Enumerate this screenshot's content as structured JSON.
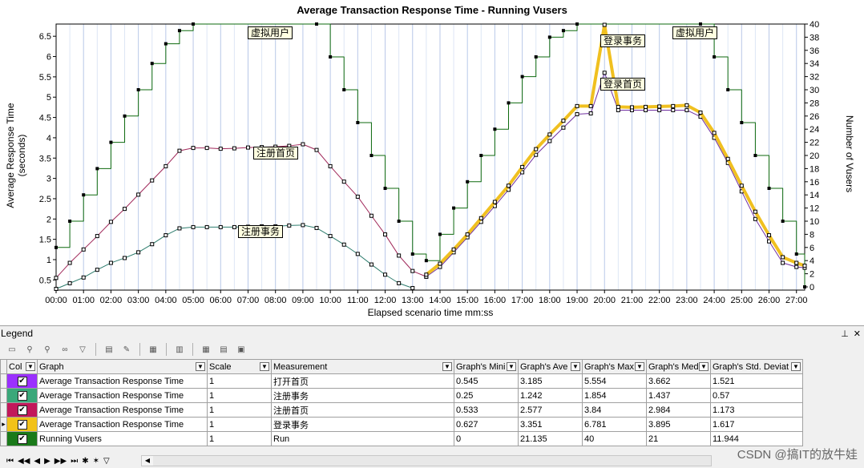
{
  "chart": {
    "title": "Average Transaction Response Time - Running Vusers",
    "ylabel_left": "Average Response Time (seconds)",
    "ylabel_right": "Number of Vusers",
    "xlabel": "Elapsed scenario time mm:ss",
    "callouts": [
      {
        "text": "虚拟用户"
      },
      {
        "text": "注册首页"
      },
      {
        "text": "注册事务"
      },
      {
        "text": "登录事务"
      },
      {
        "text": "登录首页"
      },
      {
        "text": "虚拟用户"
      }
    ]
  },
  "chart_data": {
    "type": "line",
    "x_ticks": [
      "00:00",
      "01:00",
      "02:00",
      "03:00",
      "04:00",
      "05:00",
      "06:00",
      "07:00",
      "08:00",
      "09:00",
      "10:00",
      "11:00",
      "12:00",
      "13:00",
      "14:00",
      "15:00",
      "16:00",
      "17:00",
      "18:00",
      "19:00",
      "20:00",
      "21:00",
      "22:00",
      "23:00",
      "24:00",
      "25:00",
      "26:00",
      "27:00"
    ],
    "y_left_ticks": [
      "0.5",
      "1",
      "1.5",
      "2",
      "2.5",
      "3",
      "3.5",
      "4",
      "4.5",
      "5",
      "5.5",
      "6",
      "6.5"
    ],
    "y_right_ticks": [
      "0",
      "2",
      "4",
      "6",
      "8",
      "10",
      "12",
      "14",
      "16",
      "18",
      "20",
      "22",
      "24",
      "26",
      "28",
      "30",
      "32",
      "34",
      "36",
      "38",
      "40"
    ],
    "xlim_minutes": [
      0,
      27.3
    ],
    "ylim_left": [
      0.25,
      6.8
    ],
    "ylim_right": [
      0,
      40
    ],
    "grid": "vertical",
    "series": [
      {
        "name": "Running Vusers",
        "axis": "right",
        "style": "step",
        "color": "#0e6a0e",
        "points": [
          [
            0,
            6
          ],
          [
            0.5,
            10
          ],
          [
            1,
            14
          ],
          [
            1.5,
            18
          ],
          [
            2,
            22
          ],
          [
            2.5,
            26
          ],
          [
            3,
            30
          ],
          [
            3.5,
            34
          ],
          [
            4,
            37
          ],
          [
            4.5,
            39
          ],
          [
            5,
            40
          ],
          [
            9.5,
            40
          ],
          [
            10,
            35
          ],
          [
            10.5,
            30
          ],
          [
            11,
            25
          ],
          [
            11.5,
            20
          ],
          [
            12,
            15
          ],
          [
            12.5,
            10
          ],
          [
            13,
            5
          ],
          [
            13.5,
            4
          ],
          [
            14,
            8
          ],
          [
            14.5,
            12
          ],
          [
            15,
            16
          ],
          [
            15.5,
            20
          ],
          [
            16,
            24
          ],
          [
            16.5,
            28
          ],
          [
            17,
            32
          ],
          [
            17.5,
            35
          ],
          [
            18,
            38
          ],
          [
            18.5,
            39
          ],
          [
            19,
            40
          ],
          [
            23.5,
            40
          ],
          [
            24,
            35
          ],
          [
            24.5,
            30
          ],
          [
            25,
            25
          ],
          [
            25.5,
            20
          ],
          [
            26,
            15
          ],
          [
            26.5,
            10
          ],
          [
            27,
            5
          ],
          [
            27.3,
            0
          ]
        ]
      },
      {
        "name": "注册首页",
        "axis": "left",
        "style": "line",
        "color": "#a0285a",
        "points": [
          [
            0,
            0.55
          ],
          [
            0.5,
            0.92
          ],
          [
            1,
            1.25
          ],
          [
            1.5,
            1.58
          ],
          [
            2,
            1.93
          ],
          [
            2.5,
            2.25
          ],
          [
            3,
            2.6
          ],
          [
            3.5,
            2.95
          ],
          [
            4,
            3.3
          ],
          [
            4.5,
            3.68
          ],
          [
            5,
            3.75
          ],
          [
            5.5,
            3.75
          ],
          [
            6,
            3.73
          ],
          [
            6.5,
            3.74
          ],
          [
            7,
            3.76
          ],
          [
            7.5,
            3.77
          ],
          [
            8,
            3.78
          ],
          [
            8.5,
            3.8
          ],
          [
            9,
            3.84
          ],
          [
            9.5,
            3.7
          ],
          [
            10,
            3.3
          ],
          [
            10.5,
            2.92
          ],
          [
            11,
            2.55
          ],
          [
            11.5,
            2.08
          ],
          [
            12,
            1.62
          ],
          [
            12.5,
            1.1
          ],
          [
            13,
            0.72
          ],
          [
            13.5,
            0.58
          ]
        ]
      },
      {
        "name": "注册事务",
        "axis": "left",
        "style": "line",
        "color": "#2e7d6e",
        "points": [
          [
            0,
            0.28
          ],
          [
            0.5,
            0.42
          ],
          [
            1,
            0.56
          ],
          [
            1.5,
            0.75
          ],
          [
            2,
            0.92
          ],
          [
            2.5,
            1.04
          ],
          [
            3,
            1.18
          ],
          [
            3.5,
            1.38
          ],
          [
            4,
            1.6
          ],
          [
            4.5,
            1.77
          ],
          [
            5,
            1.8
          ],
          [
            5.5,
            1.8
          ],
          [
            6,
            1.8
          ],
          [
            6.5,
            1.8
          ],
          [
            7,
            1.81
          ],
          [
            7.5,
            1.82
          ],
          [
            8,
            1.82
          ],
          [
            8.5,
            1.84
          ],
          [
            9,
            1.85
          ],
          [
            9.5,
            1.78
          ],
          [
            10,
            1.58
          ],
          [
            10.5,
            1.37
          ],
          [
            11,
            1.14
          ],
          [
            11.5,
            0.88
          ],
          [
            12,
            0.63
          ],
          [
            12.5,
            0.42
          ],
          [
            13,
            0.3
          ]
        ]
      },
      {
        "name": "打开首页",
        "axis": "left",
        "style": "line",
        "color": "#7030a0",
        "points": [
          [
            13.5,
            0.58
          ],
          [
            14,
            0.82
          ],
          [
            14.5,
            1.18
          ],
          [
            15,
            1.55
          ],
          [
            15.5,
            1.93
          ],
          [
            16,
            2.32
          ],
          [
            16.5,
            2.72
          ],
          [
            17,
            3.15
          ],
          [
            17.5,
            3.58
          ],
          [
            18,
            3.92
          ],
          [
            18.5,
            4.25
          ],
          [
            19,
            4.58
          ],
          [
            19.5,
            4.6
          ],
          [
            20,
            5.6
          ],
          [
            20.5,
            4.68
          ],
          [
            21,
            4.68
          ],
          [
            21.5,
            4.68
          ],
          [
            22,
            4.68
          ],
          [
            22.5,
            4.68
          ],
          [
            23,
            4.68
          ],
          [
            23.5,
            4.52
          ],
          [
            24,
            4
          ],
          [
            24.5,
            3.38
          ],
          [
            25,
            2.68
          ],
          [
            25.5,
            2
          ],
          [
            26,
            1.45
          ],
          [
            26.5,
            0.92
          ],
          [
            27,
            0.82
          ],
          [
            27.3,
            0.8
          ]
        ]
      },
      {
        "name": "登录事务",
        "axis": "left",
        "style": "thick",
        "color": "#f0c020",
        "points": [
          [
            13.5,
            0.63
          ],
          [
            14,
            0.9
          ],
          [
            14.5,
            1.25
          ],
          [
            15,
            1.62
          ],
          [
            15.5,
            2.02
          ],
          [
            16,
            2.42
          ],
          [
            16.5,
            2.82
          ],
          [
            17,
            3.28
          ],
          [
            17.5,
            3.72
          ],
          [
            18,
            4.08
          ],
          [
            18.5,
            4.42
          ],
          [
            19,
            4.78
          ],
          [
            19.5,
            4.78
          ],
          [
            20,
            6.78
          ],
          [
            20.5,
            4.76
          ],
          [
            21,
            4.75
          ],
          [
            21.5,
            4.76
          ],
          [
            22,
            4.77
          ],
          [
            22.5,
            4.78
          ],
          [
            23,
            4.8
          ],
          [
            23.5,
            4.62
          ],
          [
            24,
            4.12
          ],
          [
            24.5,
            3.48
          ],
          [
            25,
            2.82
          ],
          [
            25.5,
            2.18
          ],
          [
            26,
            1.6
          ],
          [
            26.5,
            1.06
          ],
          [
            27,
            0.92
          ],
          [
            27.3,
            0.85
          ]
        ]
      }
    ]
  },
  "legend": {
    "title": "Legend",
    "headers": [
      "Col",
      "Graph",
      "Scale",
      "Measurement",
      "Graph's Mini",
      "Graph's Ave",
      "Graph's Max",
      "Graph's Med",
      "Graph's Std. Deviat"
    ],
    "rows": [
      {
        "color": "#9b30ff",
        "graph": "Average Transaction Response Time",
        "scale": "1",
        "measurement": "打开首页",
        "min": "0.545",
        "avg": "3.185",
        "max": "5.554",
        "med": "3.662",
        "std": "1.521"
      },
      {
        "color": "#3aa87a",
        "graph": "Average Transaction Response Time",
        "scale": "1",
        "measurement": "注册事务",
        "min": "0.25",
        "avg": "1.242",
        "max": "1.854",
        "med": "1.437",
        "std": "0.57"
      },
      {
        "color": "#c2185b",
        "graph": "Average Transaction Response Time",
        "scale": "1",
        "measurement": "注册首页",
        "min": "0.533",
        "avg": "2.577",
        "max": "3.84",
        "med": "2.984",
        "std": "1.173"
      },
      {
        "color": "#f2c21a",
        "graph": "Average Transaction Response Time",
        "scale": "1",
        "measurement": "登录事务",
        "min": "0.627",
        "avg": "3.351",
        "max": "6.781",
        "med": "3.895",
        "std": "1.617"
      },
      {
        "color": "#1a7a1a",
        "graph": "Running Vusers",
        "scale": "1",
        "measurement": "Run",
        "min": "0",
        "avg": "21.135",
        "max": "40",
        "med": "21",
        "std": "11.944"
      }
    ]
  },
  "watermark": "CSDN @搞IT的放牛娃"
}
